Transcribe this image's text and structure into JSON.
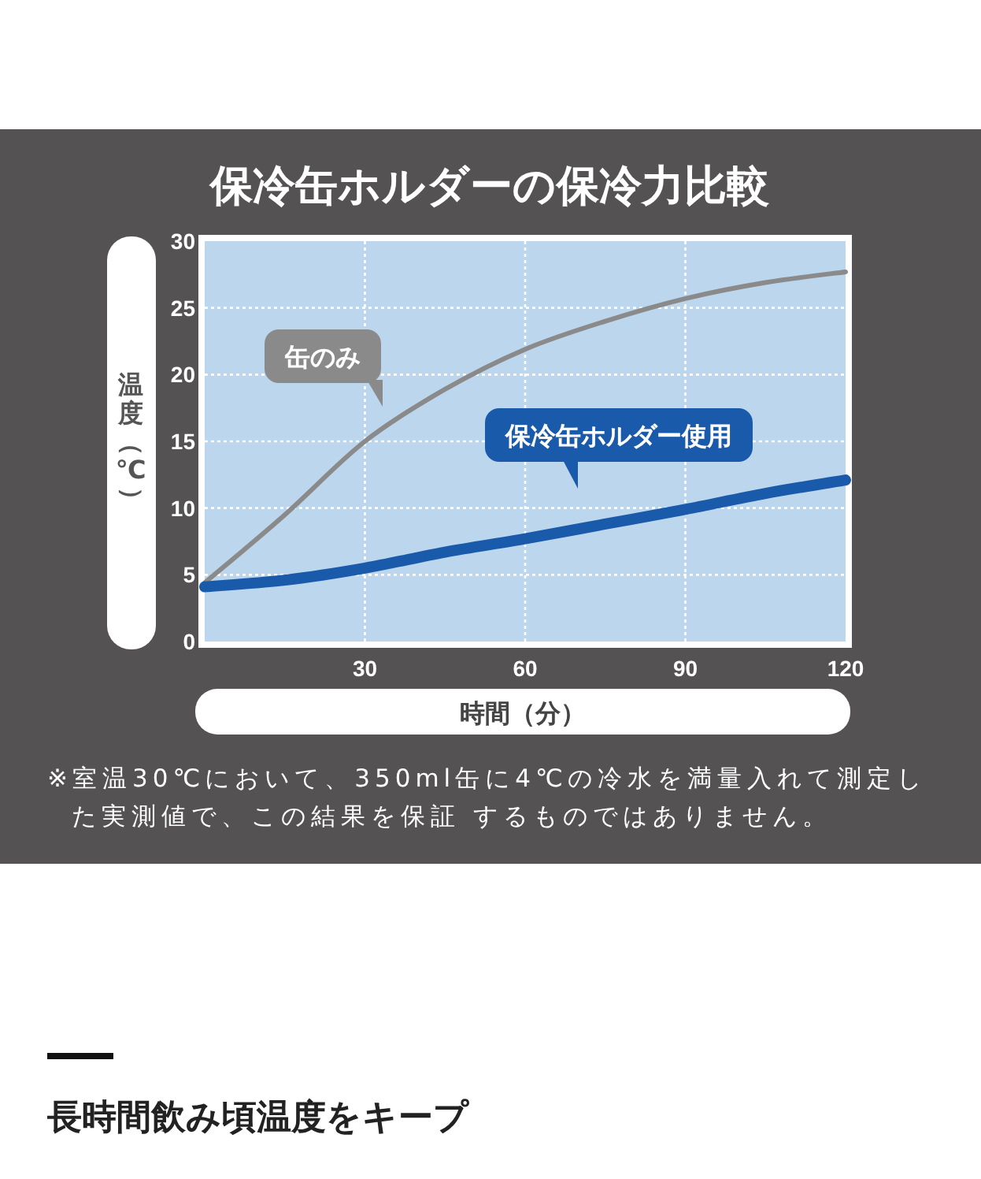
{
  "chart_data": {
    "type": "line",
    "title": "保冷缶ホルダーの保冷力比較",
    "subtitle": "長時間飲み頃温度をキープ",
    "xlabel": "時間（分）",
    "ylabel": "温度（℃）",
    "x": [
      0,
      15,
      30,
      45,
      60,
      75,
      90,
      105,
      120
    ],
    "series": [
      {
        "name": "缶のみ",
        "color": "#8a8a8a",
        "values": [
          4.4,
          9.5,
          15,
          18.9,
          21.9,
          24,
          25.7,
          26.9,
          27.7
        ]
      },
      {
        "name": "保冷缶ホルダー使用",
        "color": "#1a5aab",
        "values": [
          4.1,
          4.6,
          5.5,
          6.7,
          7.7,
          8.8,
          9.9,
          11.1,
          12.1
        ]
      }
    ],
    "xlim": [
      0,
      120
    ],
    "xticks": [
      30,
      60,
      90,
      120
    ],
    "ylim": [
      0,
      30
    ],
    "yticks": [
      0,
      5,
      10,
      15,
      20,
      25,
      30
    ],
    "grid": true,
    "marker": "none",
    "line_style": "solid",
    "annotations": [
      "※室温30℃において、350ml缶に4℃の冷水を満量入れて測定した実測値で、この結果を保証 するものではありません。"
    ]
  }
}
